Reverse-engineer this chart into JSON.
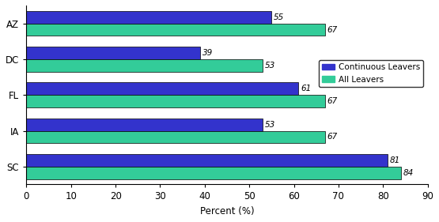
{
  "categories": [
    "SC",
    "IA",
    "FL",
    "DC",
    "AZ"
  ],
  "continuous_leavers": [
    81,
    53,
    61,
    39,
    55
  ],
  "all_leavers": [
    84,
    67,
    67,
    53,
    67
  ],
  "continuous_color": "#3333cc",
  "all_leavers_color": "#33cc99",
  "xlabel": "Percent (%)",
  "xlim": [
    0,
    90
  ],
  "xticks": [
    0,
    10,
    20,
    30,
    40,
    50,
    60,
    70,
    80,
    90
  ],
  "legend_labels": [
    "Continuous Leavers",
    "All Leavers"
  ],
  "bar_height": 0.35,
  "background_color": "#ffffff",
  "label_fontsize": 7.5,
  "axis_fontsize": 8.5
}
